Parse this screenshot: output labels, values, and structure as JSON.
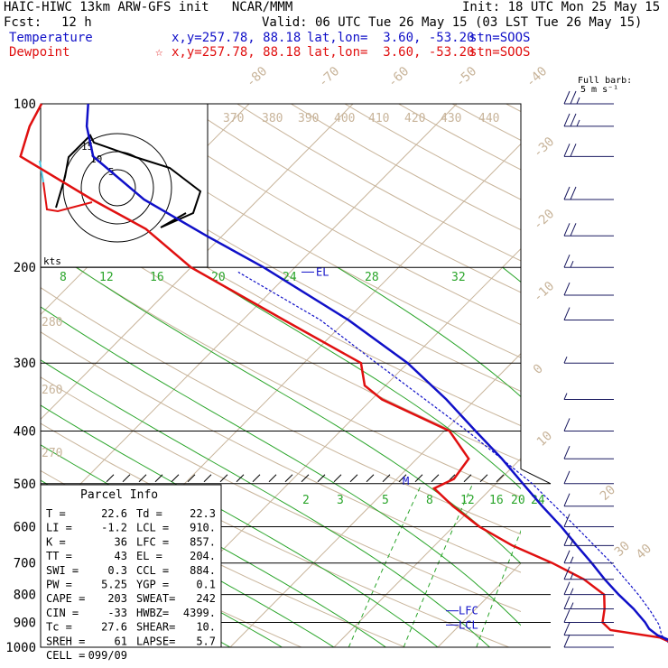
{
  "header": {
    "title": "HAIC-HIWC 13km ARW-GFS init   NCAR/MMM",
    "init": "Init: 18 UTC Mon 25 May 15",
    "fcst_label": "Fcst:",
    "fcst_value": "12 h",
    "valid": "Valid: 06 UTC Tue 26 May 15 (03 LST Tue 26 May 15)"
  },
  "legend": [
    {
      "name": "Temperature",
      "color": "#1010c8",
      "marker": "",
      "xy": "x,y=257.78, 88.18",
      "latlon": "lat,lon=  3.60, -53.20",
      "stn": "stn=SOOS"
    },
    {
      "name": "Dewpoint",
      "color": "#e01010",
      "marker": "☆",
      "xy": "x,y=257.78, 88.18",
      "latlon": "lat,lon=  3.60, -53.20",
      "stn": "stn=SOOS"
    }
  ],
  "barb_caption": {
    "line1": "Full barb:",
    "line2": "5 m s⁻¹"
  },
  "chart_data": {
    "type": "line",
    "chart": "Skew-T log-P sounding",
    "y_axis": {
      "label": "",
      "scale": "log",
      "ticks": [
        100,
        200,
        300,
        400,
        500,
        600,
        700,
        800,
        900,
        1000
      ]
    },
    "isotherm_labels": [
      "-80",
      "-70",
      "-60",
      "-50",
      "-40",
      "-30",
      "-20",
      "-10",
      "0",
      "10",
      "20",
      "30",
      "40"
    ],
    "dry_adiabat_labels": [
      "370",
      "380",
      "390",
      "400",
      "410",
      "420",
      "430",
      "440",
      "280",
      "260",
      "270"
    ],
    "mixing_ratio_labels_top": [
      "8",
      "12",
      "16",
      "20",
      "24",
      "28",
      "32"
    ],
    "mixing_ratio_labels_bottom": [
      "2",
      "3",
      "5",
      "8",
      "12",
      "16",
      "20",
      "24"
    ],
    "level_labels": [
      {
        "text": "EL",
        "p": 204
      },
      {
        "text": "LFC",
        "p": 857
      },
      {
        "text": "LCL",
        "p": 910
      },
      {
        "text": "M",
        "p": 495
      }
    ],
    "series": [
      {
        "name": "Temperature",
        "color": "#1010c8",
        "points": [
          [
            1000,
            22.8
          ],
          [
            975,
            22.0
          ],
          [
            950,
            20.0
          ],
          [
            925,
            18.6
          ],
          [
            900,
            17.6
          ],
          [
            850,
            15.2
          ],
          [
            800,
            12.4
          ],
          [
            750,
            9.6
          ],
          [
            700,
            6.8
          ],
          [
            650,
            3.7
          ],
          [
            600,
            0.4
          ],
          [
            550,
            -3.4
          ],
          [
            500,
            -7.4
          ],
          [
            450,
            -11.8
          ],
          [
            400,
            -17.0
          ],
          [
            350,
            -22.8
          ],
          [
            300,
            -30.0
          ],
          [
            250,
            -39.8
          ],
          [
            200,
            -53.0
          ],
          [
            175,
            -61.5
          ],
          [
            150,
            -71.0
          ],
          [
            125,
            -80.0
          ],
          [
            110,
            -83.5
          ],
          [
            100,
            -85.5
          ]
        ]
      },
      {
        "name": "Dewpoint",
        "color": "#e01010",
        "points": [
          [
            1000,
            22.4
          ],
          [
            980,
            22.0
          ],
          [
            960,
            20.5
          ],
          [
            930,
            15.0
          ],
          [
            900,
            13.5
          ],
          [
            850,
            12.4
          ],
          [
            800,
            11.0
          ],
          [
            750,
            7.6
          ],
          [
            700,
            3.0
          ],
          [
            650,
            -2.5
          ],
          [
            600,
            -7.5
          ],
          [
            550,
            -12.0
          ],
          [
            510,
            -15.5
          ],
          [
            490,
            -14.5
          ],
          [
            450,
            -15.0
          ],
          [
            400,
            -19.5
          ],
          [
            350,
            -29.0
          ],
          [
            330,
            -32.0
          ],
          [
            300,
            -34.5
          ],
          [
            250,
            -46.0
          ],
          [
            200,
            -60.0
          ],
          [
            170,
            -68.0
          ],
          [
            150,
            -76.0
          ],
          [
            125,
            -87.0
          ],
          [
            110,
            -89.0
          ],
          [
            100,
            -90.0
          ]
        ]
      },
      {
        "name": "Parcel",
        "color": "#1010c8",
        "points": [
          [
            1000,
            22.6
          ],
          [
            950,
            20.4
          ],
          [
            910,
            19.2
          ],
          [
            857,
            17.0
          ],
          [
            800,
            14.3
          ],
          [
            700,
            8.7
          ],
          [
            600,
            1.8
          ],
          [
            500,
            -6.5
          ],
          [
            400,
            -17.8
          ],
          [
            300,
            -33.0
          ],
          [
            250,
            -42.5
          ],
          [
            204,
            -55.0
          ]
        ]
      }
    ],
    "wind_profile_kt": [
      {
        "p": 100,
        "dir": 90,
        "spd": 25
      },
      {
        "p": 110,
        "dir": 90,
        "spd": 25
      },
      {
        "p": 125,
        "dir": 90,
        "spd": 20
      },
      {
        "p": 150,
        "dir": 90,
        "spd": 20
      },
      {
        "p": 175,
        "dir": 90,
        "spd": 20
      },
      {
        "p": 200,
        "dir": 90,
        "spd": 15
      },
      {
        "p": 225,
        "dir": 90,
        "spd": 10
      },
      {
        "p": 250,
        "dir": 90,
        "spd": 10
      },
      {
        "p": 300,
        "dir": 90,
        "spd": 5
      },
      {
        "p": 350,
        "dir": 90,
        "spd": 5
      },
      {
        "p": 400,
        "dir": 90,
        "spd": 10
      },
      {
        "p": 450,
        "dir": 90,
        "spd": 10
      },
      {
        "p": 500,
        "dir": 90,
        "spd": 10
      },
      {
        "p": 550,
        "dir": 90,
        "spd": 10
      },
      {
        "p": 600,
        "dir": 90,
        "spd": 10
      },
      {
        "p": 650,
        "dir": 90,
        "spd": 15
      },
      {
        "p": 700,
        "dir": 90,
        "spd": 15
      },
      {
        "p": 750,
        "dir": 90,
        "spd": 15
      },
      {
        "p": 800,
        "dir": 90,
        "spd": 15
      },
      {
        "p": 850,
        "dir": 90,
        "spd": 15
      },
      {
        "p": 900,
        "dir": 90,
        "spd": 10
      },
      {
        "p": 950,
        "dir": 90,
        "spd": 10
      },
      {
        "p": 1000,
        "dir": 90,
        "spd": 10
      }
    ],
    "hodograph": {
      "rings_kt": [
        5,
        10,
        15
      ],
      "axis_label": "kts"
    }
  },
  "parcel_info": {
    "title": "Parcel Info",
    "rows": [
      {
        "l": "T  =",
        "lv": "22.6",
        "r": "Td =",
        "rv": "22.3"
      },
      {
        "l": "LI =",
        "lv": "-1.2",
        "r": "LCL =",
        "rv": "910."
      },
      {
        "l": "K  =",
        "lv": "36",
        "r": "LFC =",
        "rv": "857."
      },
      {
        "l": "TT =",
        "lv": "43",
        "r": "EL =",
        "rv": "204."
      },
      {
        "l": "SWI =",
        "lv": "0.3",
        "r": "CCL =",
        "rv": "884."
      },
      {
        "l": "PW =",
        "lv": "5.25",
        "r": "YGP =",
        "rv": "0.1"
      },
      {
        "l": "CAPE =",
        "lv": "203",
        "r": "SWEAT=",
        "rv": "242"
      },
      {
        "l": "CIN =",
        "lv": "-33",
        "r": "HWBZ=",
        "rv": "4399."
      },
      {
        "l": "Tc =",
        "lv": "27.6",
        "r": "SHEAR=",
        "rv": "10."
      },
      {
        "l": "SREH =",
        "lv": "61",
        "r": "LAPSE=",
        "rv": "5.7"
      },
      {
        "l": "CELL =",
        "lv": "099/09",
        "r": "",
        "rv": ""
      }
    ]
  }
}
